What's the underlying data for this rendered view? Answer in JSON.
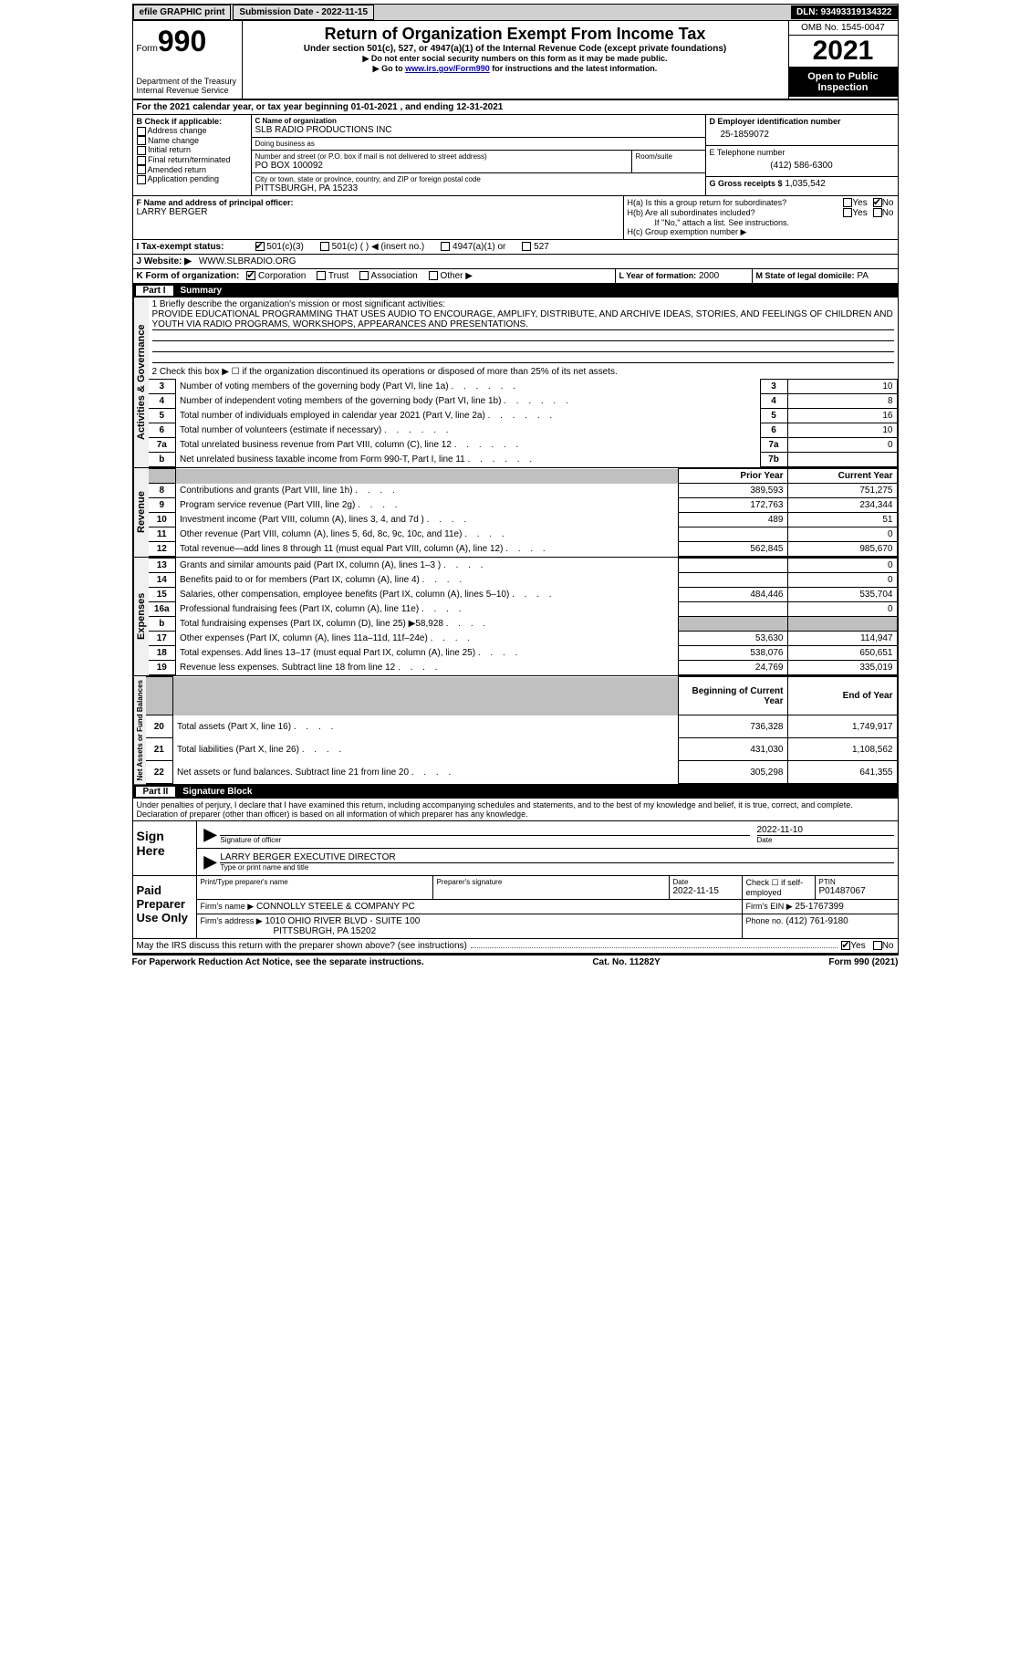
{
  "top_bar": {
    "efile": "efile GRAPHIC print",
    "submission_label": "Submission Date - 2022-11-15",
    "dln_label": "DLN: 93493319134322"
  },
  "header": {
    "form_word": "Form",
    "form_number": "990",
    "dept": "Department of the Treasury",
    "irs": "Internal Revenue Service",
    "title": "Return of Organization Exempt From Income Tax",
    "subtitle": "Under section 501(c), 527, or 4947(a)(1) of the Internal Revenue Code (except private foundations)",
    "instr1": "▶ Do not enter social security numbers on this form as it may be made public.",
    "instr2_pre": "▶ Go to ",
    "instr2_link": "www.irs.gov/Form990",
    "instr2_post": " for instructions and the latest information.",
    "omb": "OMB No. 1545-0047",
    "year": "2021",
    "open_public": "Open to Public Inspection"
  },
  "line_a": {
    "text": "For the 2021 calendar year, or tax year beginning 01-01-2021    , and ending 12-31-2021"
  },
  "box_b": {
    "label": "B Check if applicable:",
    "items": [
      "Address change",
      "Name change",
      "Initial return",
      "Final return/terminated",
      "Amended return",
      "Application pending"
    ]
  },
  "box_c": {
    "name_label": "C Name of organization",
    "name": "SLB RADIO PRODUCTIONS INC",
    "dba_label": "Doing business as",
    "dba": "",
    "street_label": "Number and street (or P.O. box if mail is not delivered to street address)",
    "room_label": "Room/suite",
    "street": "PO BOX 100092",
    "city_label": "City or town, state or province, country, and ZIP or foreign postal code",
    "city": "PITTSBURGH, PA  15233"
  },
  "box_d": {
    "label": "D Employer identification number",
    "value": "25-1859072"
  },
  "box_e": {
    "label": "E Telephone number",
    "value": "(412) 586-6300"
  },
  "box_g": {
    "label": "G Gross receipts $",
    "value": "1,035,542"
  },
  "box_f": {
    "label": "F Name and address of principal officer:",
    "value": "LARRY BERGER"
  },
  "box_h": {
    "ha": "H(a)  Is this a group return for subordinates?",
    "hb": "H(b)  Are all subordinates included?",
    "hb_note": "If \"No,\" attach a list. See instructions.",
    "hc": "H(c)  Group exemption number ▶",
    "yes": "Yes",
    "no": "No",
    "ha_no_checked": "true"
  },
  "line_i": {
    "label": "I    Tax-exempt status:",
    "opts": [
      "501(c)(3)",
      "501(c) (  ) ◀ (insert no.)",
      "4947(a)(1) or",
      "527"
    ],
    "checked_index": 0
  },
  "line_j": {
    "label": "J    Website: ▶",
    "value": "WWW.SLBRADIO.ORG"
  },
  "line_k": {
    "label": "K Form of organization:",
    "opts": [
      "Corporation",
      "Trust",
      "Association",
      "Other ▶"
    ],
    "checked_index": 0
  },
  "line_l": {
    "label": "L Year of formation:",
    "value": "2000"
  },
  "line_m": {
    "label": "M State of legal domicile:",
    "value": "PA"
  },
  "part1": {
    "title": "Part I",
    "label": "Summary",
    "q1_label": "1   Briefly describe the organization's mission or most significant activities:",
    "q1_text": "PROVIDE EDUCATIONAL PROGRAMMING THAT USES AUDIO TO ENCOURAGE, AMPLIFY, DISTRIBUTE, AND ARCHIVE IDEAS, STORIES, AND FEELINGS OF CHILDREN AND YOUTH VIA RADIO PROGRAMS, WORKSHOPS, APPEARANCES AND PRESENTATIONS.",
    "q2": "2   Check this box ▶ ☐ if the organization discontinued its operations or disposed of more than 25% of its net assets.",
    "governance_label": "Activities & Governance",
    "gov_rows": [
      {
        "n": "3",
        "d": "Number of voting members of the governing body (Part VI, line 1a)",
        "box": "3",
        "v": "10"
      },
      {
        "n": "4",
        "d": "Number of independent voting members of the governing body (Part VI, line 1b)",
        "box": "4",
        "v": "8"
      },
      {
        "n": "5",
        "d": "Total number of individuals employed in calendar year 2021 (Part V, line 2a)",
        "box": "5",
        "v": "16"
      },
      {
        "n": "6",
        "d": "Total number of volunteers (estimate if necessary)",
        "box": "6",
        "v": "10"
      },
      {
        "n": "7a",
        "d": "Total unrelated business revenue from Part VIII, column (C), line 12",
        "box": "7a",
        "v": "0"
      },
      {
        "n": "b",
        "d": "Net unrelated business taxable income from Form 990-T, Part I, line 11",
        "box": "7b",
        "v": ""
      }
    ],
    "col_prior": "Prior Year",
    "col_current": "Current Year",
    "revenue_label": "Revenue",
    "revenue_rows": [
      {
        "n": "8",
        "d": "Contributions and grants (Part VIII, line 1h)",
        "p": "389,593",
        "c": "751,275"
      },
      {
        "n": "9",
        "d": "Program service revenue (Part VIII, line 2g)",
        "p": "172,763",
        "c": "234,344"
      },
      {
        "n": "10",
        "d": "Investment income (Part VIII, column (A), lines 3, 4, and 7d )",
        "p": "489",
        "c": "51"
      },
      {
        "n": "11",
        "d": "Other revenue (Part VIII, column (A), lines 5, 6d, 8c, 9c, 10c, and 11e)",
        "p": "",
        "c": "0"
      },
      {
        "n": "12",
        "d": "Total revenue—add lines 8 through 11 (must equal Part VIII, column (A), line 12)",
        "p": "562,845",
        "c": "985,670"
      }
    ],
    "expenses_label": "Expenses",
    "expenses_rows": [
      {
        "n": "13",
        "d": "Grants and similar amounts paid (Part IX, column (A), lines 1–3 )",
        "p": "",
        "c": "0"
      },
      {
        "n": "14",
        "d": "Benefits paid to or for members (Part IX, column (A), line 4)",
        "p": "",
        "c": "0"
      },
      {
        "n": "15",
        "d": "Salaries, other compensation, employee benefits (Part IX, column (A), lines 5–10)",
        "p": "484,446",
        "c": "535,704"
      },
      {
        "n": "16a",
        "d": "Professional fundraising fees (Part IX, column (A), line 11e)",
        "p": "",
        "c": "0"
      },
      {
        "n": "b",
        "d": "Total fundraising expenses (Part IX, column (D), line 25) ▶58,928",
        "p": "shaded",
        "c": "shaded"
      },
      {
        "n": "17",
        "d": "Other expenses (Part IX, column (A), lines 11a–11d, 11f–24e)",
        "p": "53,630",
        "c": "114,947"
      },
      {
        "n": "18",
        "d": "Total expenses. Add lines 13–17 (must equal Part IX, column (A), line 25)",
        "p": "538,076",
        "c": "650,651"
      },
      {
        "n": "19",
        "d": "Revenue less expenses. Subtract line 18 from line 12",
        "p": "24,769",
        "c": "335,019"
      }
    ],
    "net_label": "Net Assets or Fund Balances",
    "col_begin": "Beginning of Current Year",
    "col_end": "End of Year",
    "net_rows": [
      {
        "n": "20",
        "d": "Total assets (Part X, line 16)",
        "p": "736,328",
        "c": "1,749,917"
      },
      {
        "n": "21",
        "d": "Total liabilities (Part X, line 26)",
        "p": "431,030",
        "c": "1,108,562"
      },
      {
        "n": "22",
        "d": "Net assets or fund balances. Subtract line 21 from line 20",
        "p": "305,298",
        "c": "641,355"
      }
    ]
  },
  "part2": {
    "title": "Part II",
    "label": "Signature Block",
    "declaration": "Under penalties of perjury, I declare that I have examined this return, including accompanying schedules and statements, and to the best of my knowledge and belief, it is true, correct, and complete. Declaration of preparer (other than officer) is based on all information of which preparer has any knowledge.",
    "sign_here": "Sign Here",
    "sig_officer": "Signature of officer",
    "sig_date": "Date",
    "sig_date_val": "2022-11-10",
    "sig_name": "LARRY BERGER  EXECUTIVE DIRECTOR",
    "sig_name_label": "Type or print name and title",
    "paid_label": "Paid Preparer Use Only",
    "prep_name_label": "Print/Type preparer's name",
    "prep_sig_label": "Preparer's signature",
    "prep_date_label": "Date",
    "prep_date": "2022-11-15",
    "prep_check_label": "Check ☐ if self-employed",
    "ptin_label": "PTIN",
    "ptin": "P01487067",
    "firm_name_label": "Firm's name    ▶",
    "firm_name": "CONNOLLY STEELE & COMPANY PC",
    "firm_ein_label": "Firm's EIN ▶",
    "firm_ein": "25-1767399",
    "firm_addr_label": "Firm's address ▶",
    "firm_addr": "1010 OHIO RIVER BLVD - SUITE 100",
    "firm_city": "PITTSBURGH, PA  15202",
    "phone_label": "Phone no.",
    "phone": "(412) 761-9180",
    "may_irs": "May the IRS discuss this return with the preparer shown above? (see instructions)",
    "may_yes_checked": "true"
  },
  "footer": {
    "left": "For Paperwork Reduction Act Notice, see the separate instructions.",
    "center": "Cat. No. 11282Y",
    "right": "Form 990 (2021)"
  }
}
